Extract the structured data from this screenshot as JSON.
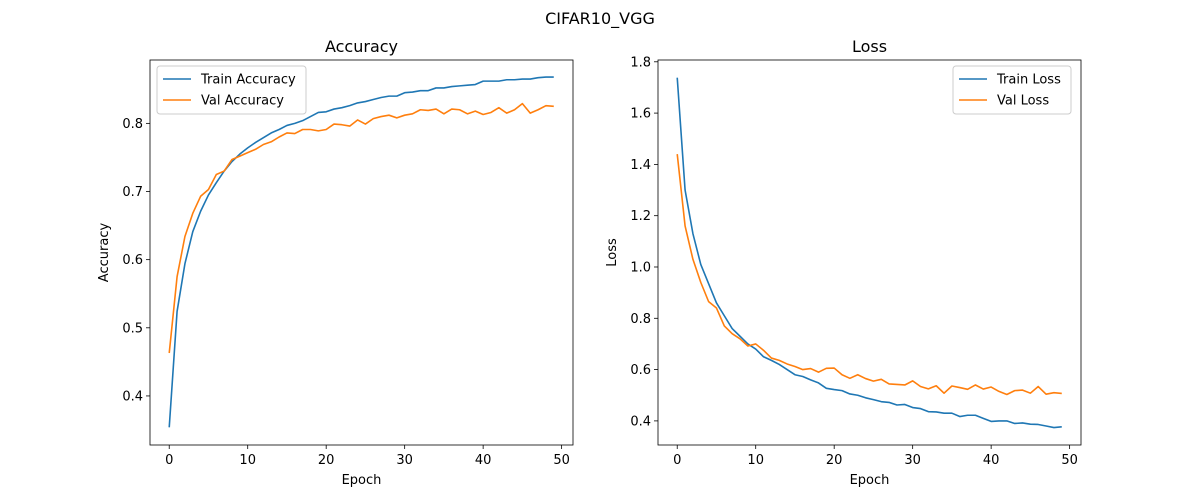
{
  "figure_title": "CIFAR10_VGG",
  "chart_data": [
    {
      "type": "line",
      "title": "Accuracy",
      "xlabel": "Epoch",
      "ylabel": "Accuracy",
      "xlim": [
        -2.45,
        51.45
      ],
      "ylim": [
        0.328,
        0.893
      ],
      "xticks": [
        0,
        10,
        20,
        30,
        40,
        50
      ],
      "yticks": [
        0.4,
        0.5,
        0.6,
        0.7,
        0.8
      ],
      "ytick_labels": [
        "0.4",
        "0.5",
        "0.6",
        "0.7",
        "0.8"
      ],
      "legend_position": "upper-left",
      "grid": false,
      "x": [
        0,
        1,
        2,
        3,
        4,
        5,
        6,
        7,
        8,
        9,
        10,
        11,
        12,
        13,
        14,
        15,
        16,
        17,
        18,
        19,
        20,
        21,
        22,
        23,
        24,
        25,
        26,
        27,
        28,
        29,
        30,
        31,
        32,
        33,
        34,
        35,
        36,
        37,
        38,
        39,
        40,
        41,
        42,
        43,
        44,
        45,
        46,
        47,
        48,
        49
      ],
      "series": [
        {
          "name": "Train Accuracy",
          "color": "#1f77b4",
          "values": [
            0.354,
            0.524,
            0.594,
            0.641,
            0.671,
            0.695,
            0.713,
            0.73,
            0.744,
            0.755,
            0.764,
            0.772,
            0.779,
            0.786,
            0.791,
            0.797,
            0.8,
            0.804,
            0.81,
            0.816,
            0.817,
            0.821,
            0.823,
            0.826,
            0.83,
            0.832,
            0.835,
            0.838,
            0.84,
            0.84,
            0.845,
            0.846,
            0.848,
            0.848,
            0.852,
            0.852,
            0.854,
            0.855,
            0.856,
            0.857,
            0.862,
            0.862,
            0.862,
            0.864,
            0.864,
            0.865,
            0.865,
            0.867,
            0.868,
            0.868
          ]
        },
        {
          "name": "Val Accuracy",
          "color": "#ff7f0e",
          "values": [
            0.463,
            0.575,
            0.634,
            0.668,
            0.693,
            0.703,
            0.725,
            0.73,
            0.747,
            0.752,
            0.757,
            0.762,
            0.769,
            0.773,
            0.78,
            0.786,
            0.785,
            0.791,
            0.791,
            0.789,
            0.791,
            0.799,
            0.798,
            0.796,
            0.805,
            0.799,
            0.807,
            0.81,
            0.812,
            0.808,
            0.812,
            0.814,
            0.82,
            0.819,
            0.821,
            0.814,
            0.821,
            0.82,
            0.814,
            0.818,
            0.813,
            0.816,
            0.823,
            0.815,
            0.82,
            0.829,
            0.815,
            0.82,
            0.826,
            0.825
          ]
        }
      ]
    },
    {
      "type": "line",
      "title": "Loss",
      "xlabel": "Epoch",
      "ylabel": "Loss",
      "xlim": [
        -2.45,
        51.45
      ],
      "ylim": [
        0.306,
        1.807
      ],
      "xticks": [
        0,
        10,
        20,
        30,
        40,
        50
      ],
      "yticks": [
        0.4,
        0.6,
        0.8,
        1.0,
        1.2,
        1.4,
        1.6,
        1.8
      ],
      "ytick_labels": [
        "0.4",
        "0.6",
        "0.8",
        "1.0",
        "1.2",
        "1.4",
        "1.6",
        "1.8"
      ],
      "legend_position": "upper-right",
      "grid": false,
      "x": [
        0,
        1,
        2,
        3,
        4,
        5,
        6,
        7,
        8,
        9,
        10,
        11,
        12,
        13,
        14,
        15,
        16,
        17,
        18,
        19,
        20,
        21,
        22,
        23,
        24,
        25,
        26,
        27,
        28,
        29,
        30,
        31,
        32,
        33,
        34,
        35,
        36,
        37,
        38,
        39,
        40,
        41,
        42,
        43,
        44,
        45,
        46,
        47,
        48,
        49
      ],
      "series": [
        {
          "name": "Train Loss",
          "color": "#1f77b4",
          "values": [
            1.738,
            1.3,
            1.13,
            1.01,
            0.935,
            0.86,
            0.81,
            0.76,
            0.73,
            0.7,
            0.68,
            0.65,
            0.636,
            0.62,
            0.6,
            0.58,
            0.573,
            0.56,
            0.548,
            0.527,
            0.522,
            0.518,
            0.505,
            0.5,
            0.49,
            0.483,
            0.475,
            0.472,
            0.462,
            0.464,
            0.452,
            0.448,
            0.436,
            0.435,
            0.43,
            0.43,
            0.417,
            0.422,
            0.422,
            0.41,
            0.398,
            0.4,
            0.4,
            0.39,
            0.392,
            0.387,
            0.386,
            0.38,
            0.374,
            0.377
          ]
        },
        {
          "name": "Val Loss",
          "color": "#ff7f0e",
          "values": [
            1.44,
            1.16,
            1.03,
            0.94,
            0.865,
            0.84,
            0.77,
            0.74,
            0.72,
            0.692,
            0.7,
            0.675,
            0.645,
            0.636,
            0.622,
            0.612,
            0.6,
            0.604,
            0.59,
            0.605,
            0.606,
            0.58,
            0.566,
            0.58,
            0.565,
            0.555,
            0.562,
            0.544,
            0.542,
            0.54,
            0.556,
            0.534,
            0.525,
            0.537,
            0.508,
            0.536,
            0.53,
            0.523,
            0.54,
            0.524,
            0.532,
            0.515,
            0.503,
            0.518,
            0.52,
            0.508,
            0.534,
            0.504,
            0.51,
            0.507
          ]
        }
      ]
    }
  ]
}
